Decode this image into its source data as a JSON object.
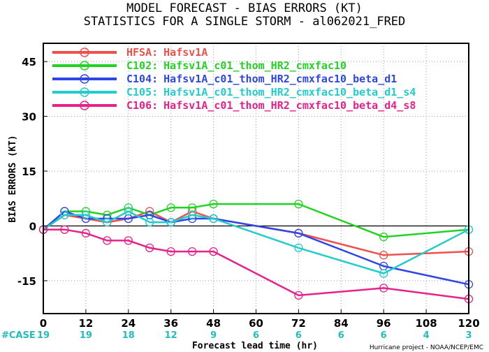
{
  "chart_data": {
    "type": "line",
    "title_line1": "MODEL FORECAST - BIAS ERRORS (KT)",
    "title_line2": "STATISTICS FOR A SINGLE STORM - al062021_FRED",
    "xlabel": "Forecast lead time (hr)",
    "ylabel": "BIAS ERRORS (KT)",
    "xlim": [
      0,
      120
    ],
    "ylim": [
      -24,
      50
    ],
    "x_ticks": [
      0,
      12,
      24,
      36,
      48,
      60,
      72,
      84,
      96,
      108,
      120
    ],
    "y_ticks": [
      -15,
      0,
      15,
      30,
      45
    ],
    "grid": true,
    "legend_position": "top-left",
    "series": [
      {
        "name": "HFSA:",
        "desc": "Hafsv1A",
        "color": "#f0504a",
        "x": [
          0,
          6,
          12,
          18,
          24,
          30,
          36,
          42,
          48,
          72,
          96,
          120
        ],
        "y": [
          -1,
          3,
          2,
          1,
          2,
          4,
          1,
          4,
          2,
          -2,
          -8,
          -7
        ]
      },
      {
        "name": "C102:",
        "desc": "Hafsv1A_c01_thom_HR2_cmxfac10",
        "color": "#22d422",
        "x": [
          0,
          6,
          12,
          18,
          24,
          30,
          36,
          42,
          48,
          72,
          96,
          120
        ],
        "y": [
          -1,
          4,
          4,
          3,
          5,
          3,
          5,
          5,
          6,
          6,
          -3,
          -1
        ]
      },
      {
        "name": "C104:",
        "desc": "Hafsv1A_c01_thom_HR2_cmxfac10_beta_d1",
        "color": "#2e46e8",
        "x": [
          0,
          6,
          12,
          18,
          24,
          30,
          36,
          42,
          48,
          72,
          96,
          120
        ],
        "y": [
          -1,
          4,
          2,
          2,
          2,
          3,
          1,
          2,
          2,
          -2,
          -11,
          -16
        ]
      },
      {
        "name": "C105:",
        "desc": "Hafsv1A_c01_thom_HR2_cmxfac10_beta_d1_s4",
        "color": "#22cccc",
        "x": [
          0,
          6,
          12,
          18,
          24,
          30,
          36,
          42,
          48,
          72,
          96,
          120
        ],
        "y": [
          -1,
          3,
          3,
          1,
          4,
          1,
          1,
          3,
          2,
          -6,
          -13,
          -1
        ]
      },
      {
        "name": "C106:",
        "desc": "Hafsv1A_c01_thom_HR2_cmxfac10_beta_d4_s8",
        "color": "#e8208a",
        "x": [
          0,
          6,
          12,
          18,
          24,
          30,
          36,
          42,
          48,
          72,
          96,
          120
        ],
        "y": [
          -1,
          -1,
          -2,
          -4,
          -4,
          -6,
          -7,
          -7,
          -7,
          -19,
          -17,
          -20
        ]
      }
    ],
    "case_label": "#CASE",
    "case_counts": [
      {
        "x": 0,
        "n": "19"
      },
      {
        "x": 12,
        "n": "19"
      },
      {
        "x": 24,
        "n": "18"
      },
      {
        "x": 36,
        "n": "12"
      },
      {
        "x": 48,
        "n": "9"
      },
      {
        "x": 60,
        "n": "6"
      },
      {
        "x": 72,
        "n": "6"
      },
      {
        "x": 84,
        "n": "6"
      },
      {
        "x": 96,
        "n": "6"
      },
      {
        "x": 108,
        "n": "4"
      },
      {
        "x": 120,
        "n": "3"
      }
    ],
    "case_color": "#22bcbc",
    "credit": "Hurricane project - NOAA/NCEP/EMC"
  }
}
